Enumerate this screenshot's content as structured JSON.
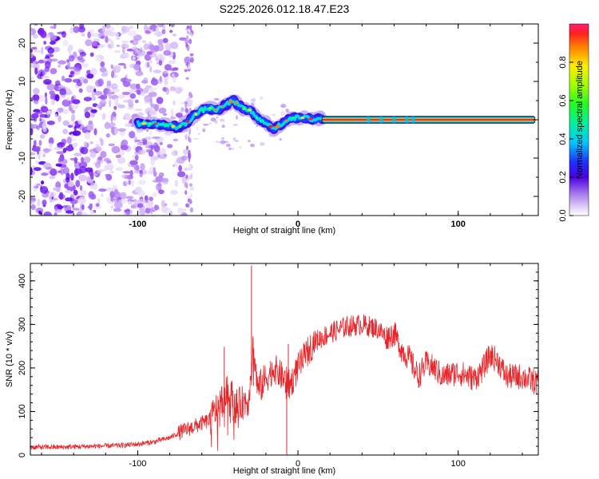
{
  "title": "S225.2026.012.18.47.E23",
  "chart_data": [
    {
      "type": "heatmap",
      "name": "spectrogram",
      "xlabel": "Height of straight line (km)",
      "ylabel": "Frequency (Hz)",
      "xlim": [
        -167,
        150
      ],
      "ylim": [
        -25,
        25
      ],
      "xticks": [
        "-100",
        "0",
        "100"
      ],
      "yticks": [
        "-20",
        "-10",
        "0",
        "10",
        "20"
      ],
      "colorbar": {
        "label": "Normalized spectral amplitude",
        "range": [
          0.0,
          1.0
        ],
        "ticks": [
          "0.0",
          "0.2",
          "0.4",
          "0.6",
          "0.8"
        ]
      },
      "ridge": {
        "x": [
          -100,
          -90,
          -80,
          -75,
          -70,
          -65,
          -60,
          -55,
          -50,
          -45,
          -40,
          -35,
          -30,
          -25,
          -20,
          -15,
          -10,
          -5,
          0,
          5,
          10,
          15,
          20,
          40,
          60,
          80,
          100,
          120,
          148
        ],
        "freq": [
          -1,
          -1,
          -1.5,
          -2,
          -1,
          1,
          2.5,
          3,
          2.5,
          4,
          5,
          3,
          2.5,
          0,
          -0.5,
          -2.5,
          -1,
          0.5,
          0.5,
          0.5,
          0,
          0.5,
          0,
          0,
          0,
          0,
          0,
          0,
          0
        ]
      }
    },
    {
      "type": "line",
      "name": "snr",
      "xlabel": "Height of straight line (km)",
      "ylabel": "SNR (10 * v/v)",
      "xlim": [
        -167,
        150
      ],
      "ylim": [
        0,
        440
      ],
      "xticks": [
        "-100",
        "0",
        "100"
      ],
      "yticks": [
        "0",
        "100",
        "200",
        "300",
        "400"
      ],
      "color": "#e8262a",
      "series": [
        {
          "name": "SNR",
          "x": [
            -167,
            -150,
            -130,
            -110,
            -100,
            -90,
            -80,
            -72,
            -65,
            -55,
            -50,
            -45,
            -42,
            -40,
            -35,
            -30,
            -28,
            -25,
            -20,
            -15,
            -10,
            -5,
            0,
            10,
            20,
            30,
            40,
            50,
            55,
            60,
            65,
            70,
            75,
            80,
            85,
            90,
            100,
            110,
            115,
            120,
            125,
            130,
            140,
            150
          ],
          "y": [
            18,
            18,
            20,
            22,
            25,
            30,
            40,
            55,
            65,
            80,
            110,
            140,
            150,
            110,
            120,
            130,
            250,
            150,
            175,
            200,
            180,
            160,
            200,
            260,
            280,
            295,
            300,
            290,
            270,
            280,
            240,
            220,
            180,
            210,
            200,
            180,
            190,
            175,
            195,
            230,
            215,
            180,
            180,
            165
          ]
        }
      ],
      "spikes": [
        {
          "x": -46,
          "y": 248
        },
        {
          "x": -29,
          "y": 435
        },
        {
          "x": -6,
          "y": 255
        }
      ]
    }
  ]
}
